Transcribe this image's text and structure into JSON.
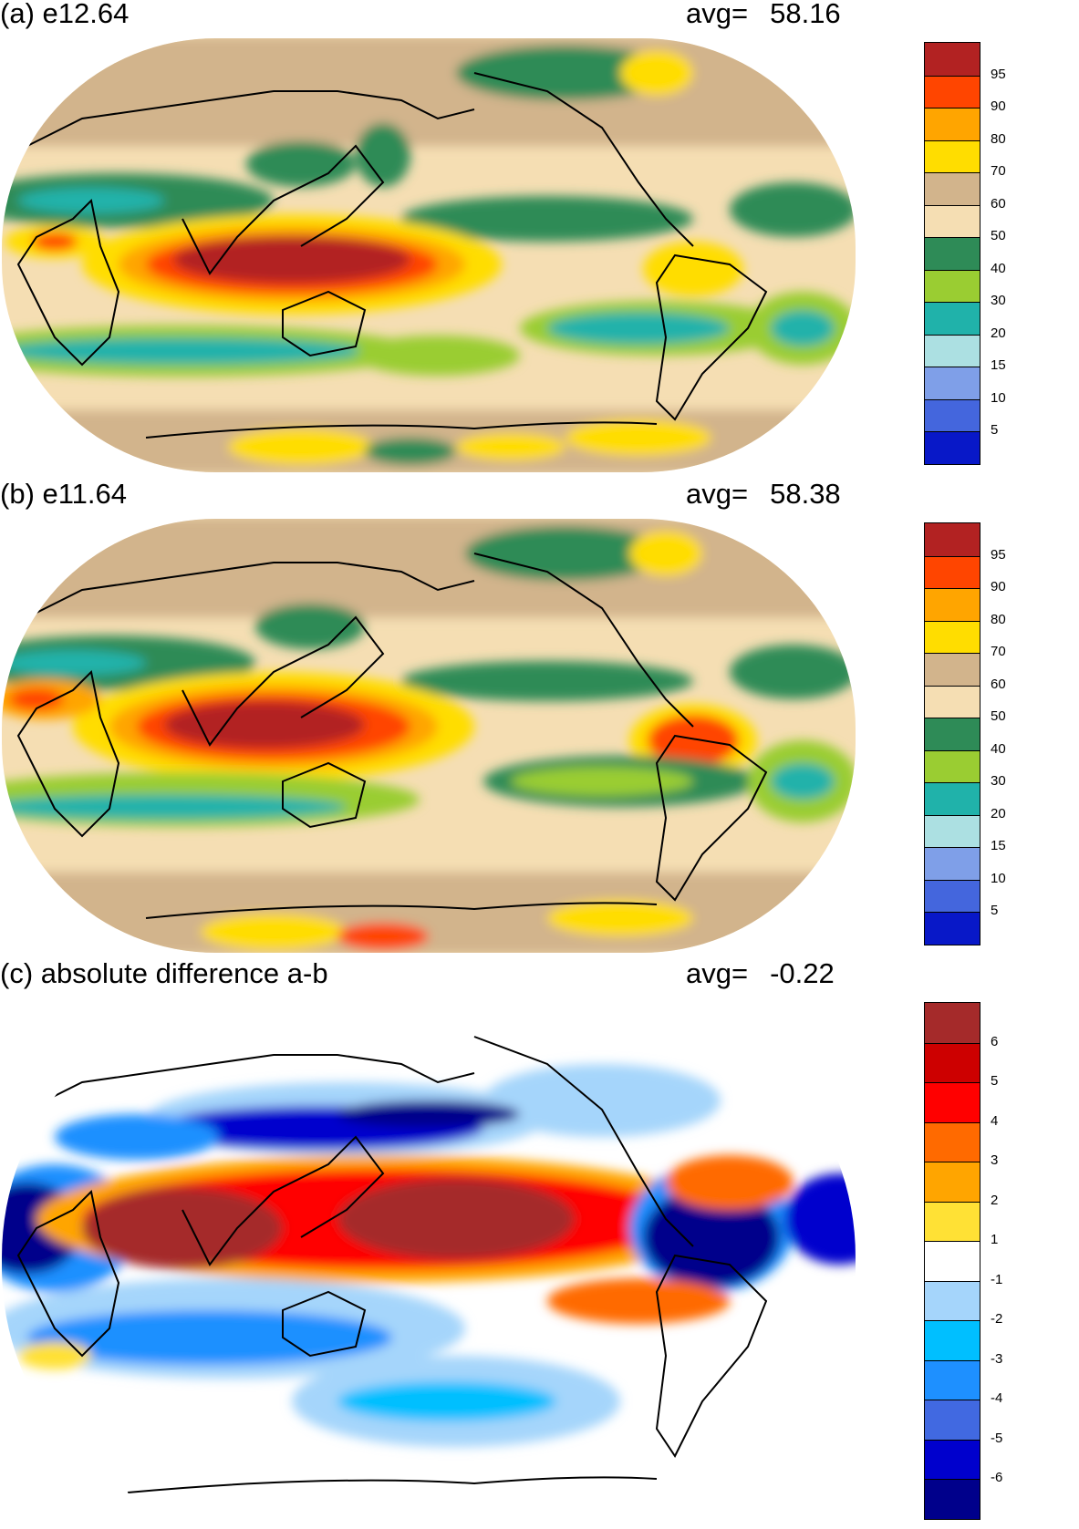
{
  "panels": [
    {
      "id": "a",
      "title": "(a) e12.64",
      "avg_label": "avg=",
      "avg_value": "58.16",
      "colorbar": {
        "colors": [
          "#0818c8",
          "#4466dd",
          "#7f9fe8",
          "#ace0e2",
          "#20b2aa",
          "#9acd32",
          "#2e8b57",
          "#f5deb3",
          "#d2b48c",
          "#ffdd00",
          "#ffa500",
          "#ff4500",
          "#b22222"
        ],
        "labels": [
          "5",
          "10",
          "15",
          "20",
          "30",
          "40",
          "50",
          "60",
          "70",
          "80",
          "90",
          "95"
        ]
      }
    },
    {
      "id": "b",
      "title": "(b) e11.64",
      "avg_label": "avg=",
      "avg_value": "58.38",
      "colorbar": {
        "colors": [
          "#0818c8",
          "#4466dd",
          "#7f9fe8",
          "#ace0e2",
          "#20b2aa",
          "#9acd32",
          "#2e8b57",
          "#f5deb3",
          "#d2b48c",
          "#ffdd00",
          "#ffa500",
          "#ff4500",
          "#b22222"
        ],
        "labels": [
          "5",
          "10",
          "15",
          "20",
          "30",
          "40",
          "50",
          "60",
          "70",
          "80",
          "90",
          "95"
        ]
      }
    },
    {
      "id": "c",
      "title": "(c) absolute difference a-b",
      "avg_label": "avg=",
      "avg_value": "-0.22",
      "colorbar": {
        "colors": [
          "#00008b",
          "#0000cd",
          "#4169e1",
          "#1e90ff",
          "#00bfff",
          "#a5d5fb",
          "#ffffff",
          "#ffe135",
          "#ffa500",
          "#ff6a00",
          "#ff0000",
          "#cd0000",
          "#a52a2a"
        ],
        "labels": [
          "-6",
          "-5",
          "-4",
          "-3",
          "-2",
          "-1",
          "1",
          "2",
          "3",
          "4",
          "5",
          "6"
        ]
      }
    }
  ]
}
